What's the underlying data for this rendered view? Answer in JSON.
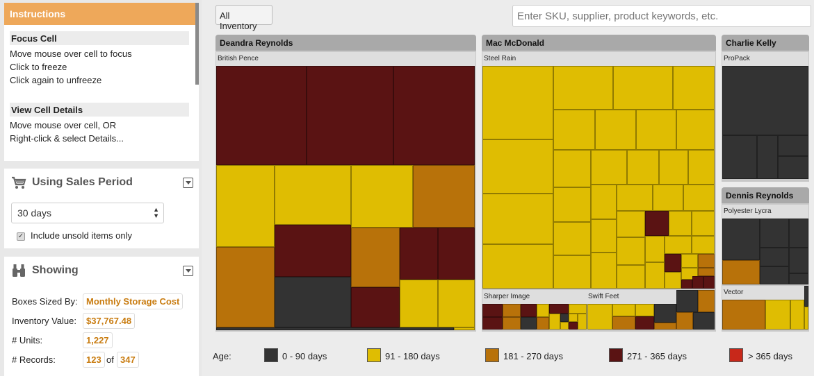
{
  "instructions": {
    "header": "Instructions",
    "focus_title": "Focus Cell",
    "focus_lines": [
      "Move mouse over cell to focus",
      "Click to freeze",
      "Click again to unfreeze"
    ],
    "details_title": "View Cell Details",
    "details_lines": [
      "Move mouse over cell, OR",
      "Right-click & select Details..."
    ]
  },
  "sales_period": {
    "title": "Using Sales Period",
    "selected": "30 days",
    "include_unsold_label": "Include unsold items only",
    "include_unsold_checked": true
  },
  "showing": {
    "title": "Showing",
    "boxes_sized_by_label": "Boxes Sized By:",
    "boxes_sized_by": "Monthly Storage Cost",
    "inventory_value_label": "Inventory Value:",
    "inventory_value": "$37,767.48",
    "units_label": "# Units:",
    "units": "1,227",
    "records_label": "# Records:",
    "records_shown": "123",
    "records_of": "of",
    "records_total": "347"
  },
  "toolbar": {
    "all_inventory": "All Inventory",
    "search_placeholder": "Enter SKU, supplier, product keywords, etc."
  },
  "treemap": {
    "groups": [
      {
        "name": "Deandra Reynolds",
        "subgroups": [
          "British Pence"
        ]
      },
      {
        "name": "Mac McDonald",
        "subgroups": [
          "Steel Rain",
          "Sharper Image",
          "Swift Feet"
        ]
      },
      {
        "name": "Charlie Kelly",
        "subgroups": [
          "ProPack"
        ]
      },
      {
        "name": "Dennis Reynolds",
        "subgroups": [
          "Polyester Lycra",
          "Vector"
        ]
      }
    ]
  },
  "legend": {
    "label": "Age:",
    "items": [
      {
        "label": "0 - 90 days",
        "color": "#333333"
      },
      {
        "label": "91 - 180 days",
        "color": "#dfbd02"
      },
      {
        "label": "181 - 270 days",
        "color": "#b8720a"
      },
      {
        "label": "271 - 365 days",
        "color": "#5a1313"
      },
      {
        "label": "> 365 days",
        "color": "#c8281a"
      }
    ]
  }
}
